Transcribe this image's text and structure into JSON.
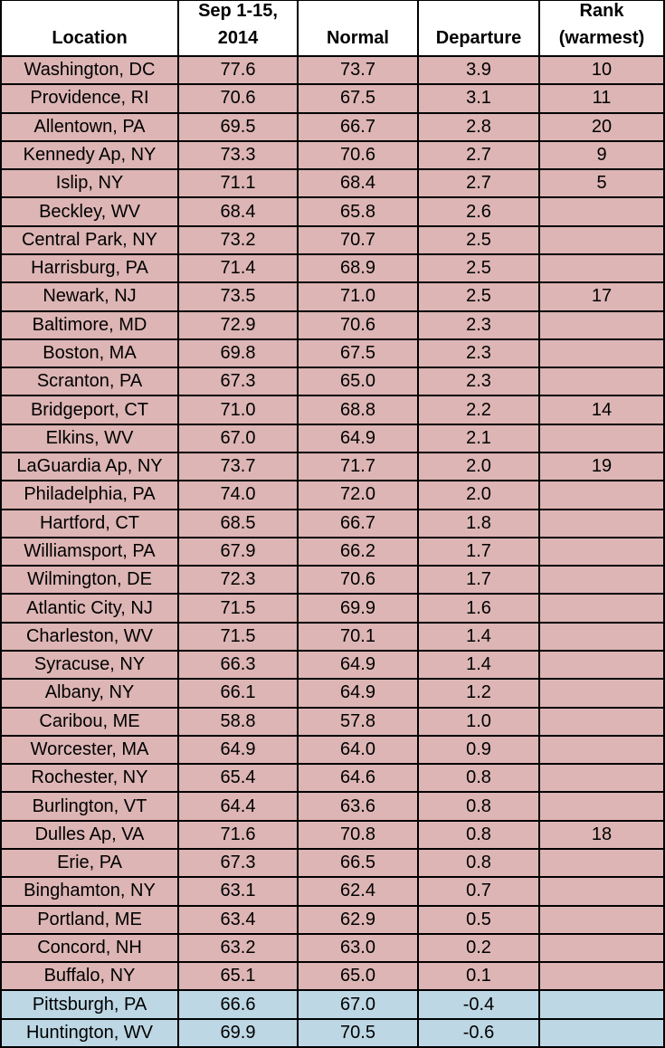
{
  "table": {
    "header": [
      [
        "Location"
      ],
      [
        "Sep 1-15,",
        "2014"
      ],
      [
        "Normal"
      ],
      [
        "Departure"
      ],
      [
        "Rank",
        "(warmest)"
      ]
    ],
    "colors": {
      "above": "#dcb5b4",
      "below": "#bdd7e4"
    },
    "rows": [
      [
        "Washington, DC",
        "77.6",
        "73.7",
        "3.9",
        "10"
      ],
      [
        "Providence, RI",
        "70.6",
        "67.5",
        "3.1",
        "11"
      ],
      [
        "Allentown, PA",
        "69.5",
        "66.7",
        "2.8",
        "20"
      ],
      [
        "Kennedy Ap, NY",
        "73.3",
        "70.6",
        "2.7",
        "9"
      ],
      [
        "Islip, NY",
        "71.1",
        "68.4",
        "2.7",
        "5"
      ],
      [
        "Beckley, WV",
        "68.4",
        "65.8",
        "2.6",
        null
      ],
      [
        "Central Park, NY",
        "73.2",
        "70.7",
        "2.5",
        null
      ],
      [
        "Harrisburg, PA",
        "71.4",
        "68.9",
        "2.5",
        null
      ],
      [
        "Newark, NJ",
        "73.5",
        "71.0",
        "2.5",
        "17"
      ],
      [
        "Baltimore, MD",
        "72.9",
        "70.6",
        "2.3",
        null
      ],
      [
        "Boston, MA",
        "69.8",
        "67.5",
        "2.3",
        null
      ],
      [
        "Scranton, PA",
        "67.3",
        "65.0",
        "2.3",
        null
      ],
      [
        "Bridgeport, CT",
        "71.0",
        "68.8",
        "2.2",
        "14"
      ],
      [
        "Elkins, WV",
        "67.0",
        "64.9",
        "2.1",
        null
      ],
      [
        "LaGuardia Ap, NY",
        "73.7",
        "71.7",
        "2.0",
        "19"
      ],
      [
        "Philadelphia, PA",
        "74.0",
        "72.0",
        "2.0",
        null
      ],
      [
        "Hartford, CT",
        "68.5",
        "66.7",
        "1.8",
        null
      ],
      [
        "Williamsport, PA",
        "67.9",
        "66.2",
        "1.7",
        null
      ],
      [
        "Wilmington, DE",
        "72.3",
        "70.6",
        "1.7",
        null
      ],
      [
        "Atlantic City, NJ",
        "71.5",
        "69.9",
        "1.6",
        null
      ],
      [
        "Charleston, WV",
        "71.5",
        "70.1",
        "1.4",
        null
      ],
      [
        "Syracuse, NY",
        "66.3",
        "64.9",
        "1.4",
        null
      ],
      [
        "Albany, NY",
        "66.1",
        "64.9",
        "1.2",
        null
      ],
      [
        "Caribou, ME",
        "58.8",
        "57.8",
        "1.0",
        null
      ],
      [
        "Worcester, MA",
        "64.9",
        "64.0",
        "0.9",
        null
      ],
      [
        "Rochester, NY",
        "65.4",
        "64.6",
        "0.8",
        null
      ],
      [
        "Burlington, VT",
        "64.4",
        "63.6",
        "0.8",
        null
      ],
      [
        "Dulles Ap, VA",
        "71.6",
        "70.8",
        "0.8",
        "18"
      ],
      [
        "Erie, PA",
        "67.3",
        "66.5",
        "0.8",
        null
      ],
      [
        "Binghamton, NY",
        "63.1",
        "62.4",
        "0.7",
        null
      ],
      [
        "Portland, ME",
        "63.4",
        "62.9",
        "0.5",
        null
      ],
      [
        "Concord, NH",
        "63.2",
        "63.0",
        "0.2",
        null
      ],
      [
        "Buffalo, NY",
        "65.1",
        "65.0",
        "0.1",
        null
      ],
      [
        "Pittsburgh, PA",
        "66.6",
        "67.0",
        "-0.4",
        null
      ],
      [
        "Huntington, WV",
        "69.9",
        "70.5",
        "-0.6",
        null
      ]
    ]
  }
}
